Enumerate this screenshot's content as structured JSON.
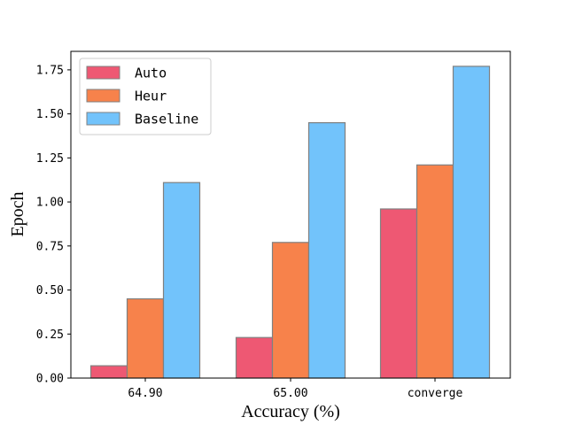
{
  "chart_data": {
    "type": "bar",
    "xlabel": "Accuracy (%)",
    "ylabel": "Epoch",
    "categories": [
      "64.90",
      "65.00",
      "converge"
    ],
    "series": [
      {
        "name": "Auto",
        "color": "#ee5873",
        "values": [
          0.07,
          0.23,
          0.96
        ]
      },
      {
        "name": "Heur",
        "color": "#f7824b",
        "values": [
          0.45,
          0.77,
          1.21
        ]
      },
      {
        "name": "Baseline",
        "color": "#72c3fb",
        "values": [
          1.11,
          1.45,
          1.77
        ]
      }
    ],
    "ylim": [
      0,
      1.855
    ],
    "yticks": [
      "0.00",
      "0.25",
      "0.50",
      "0.75",
      "1.00",
      "1.25",
      "1.50",
      "1.75"
    ],
    "grid": false,
    "legend_position": "top-left",
    "bar_edge_color": "#808080"
  }
}
